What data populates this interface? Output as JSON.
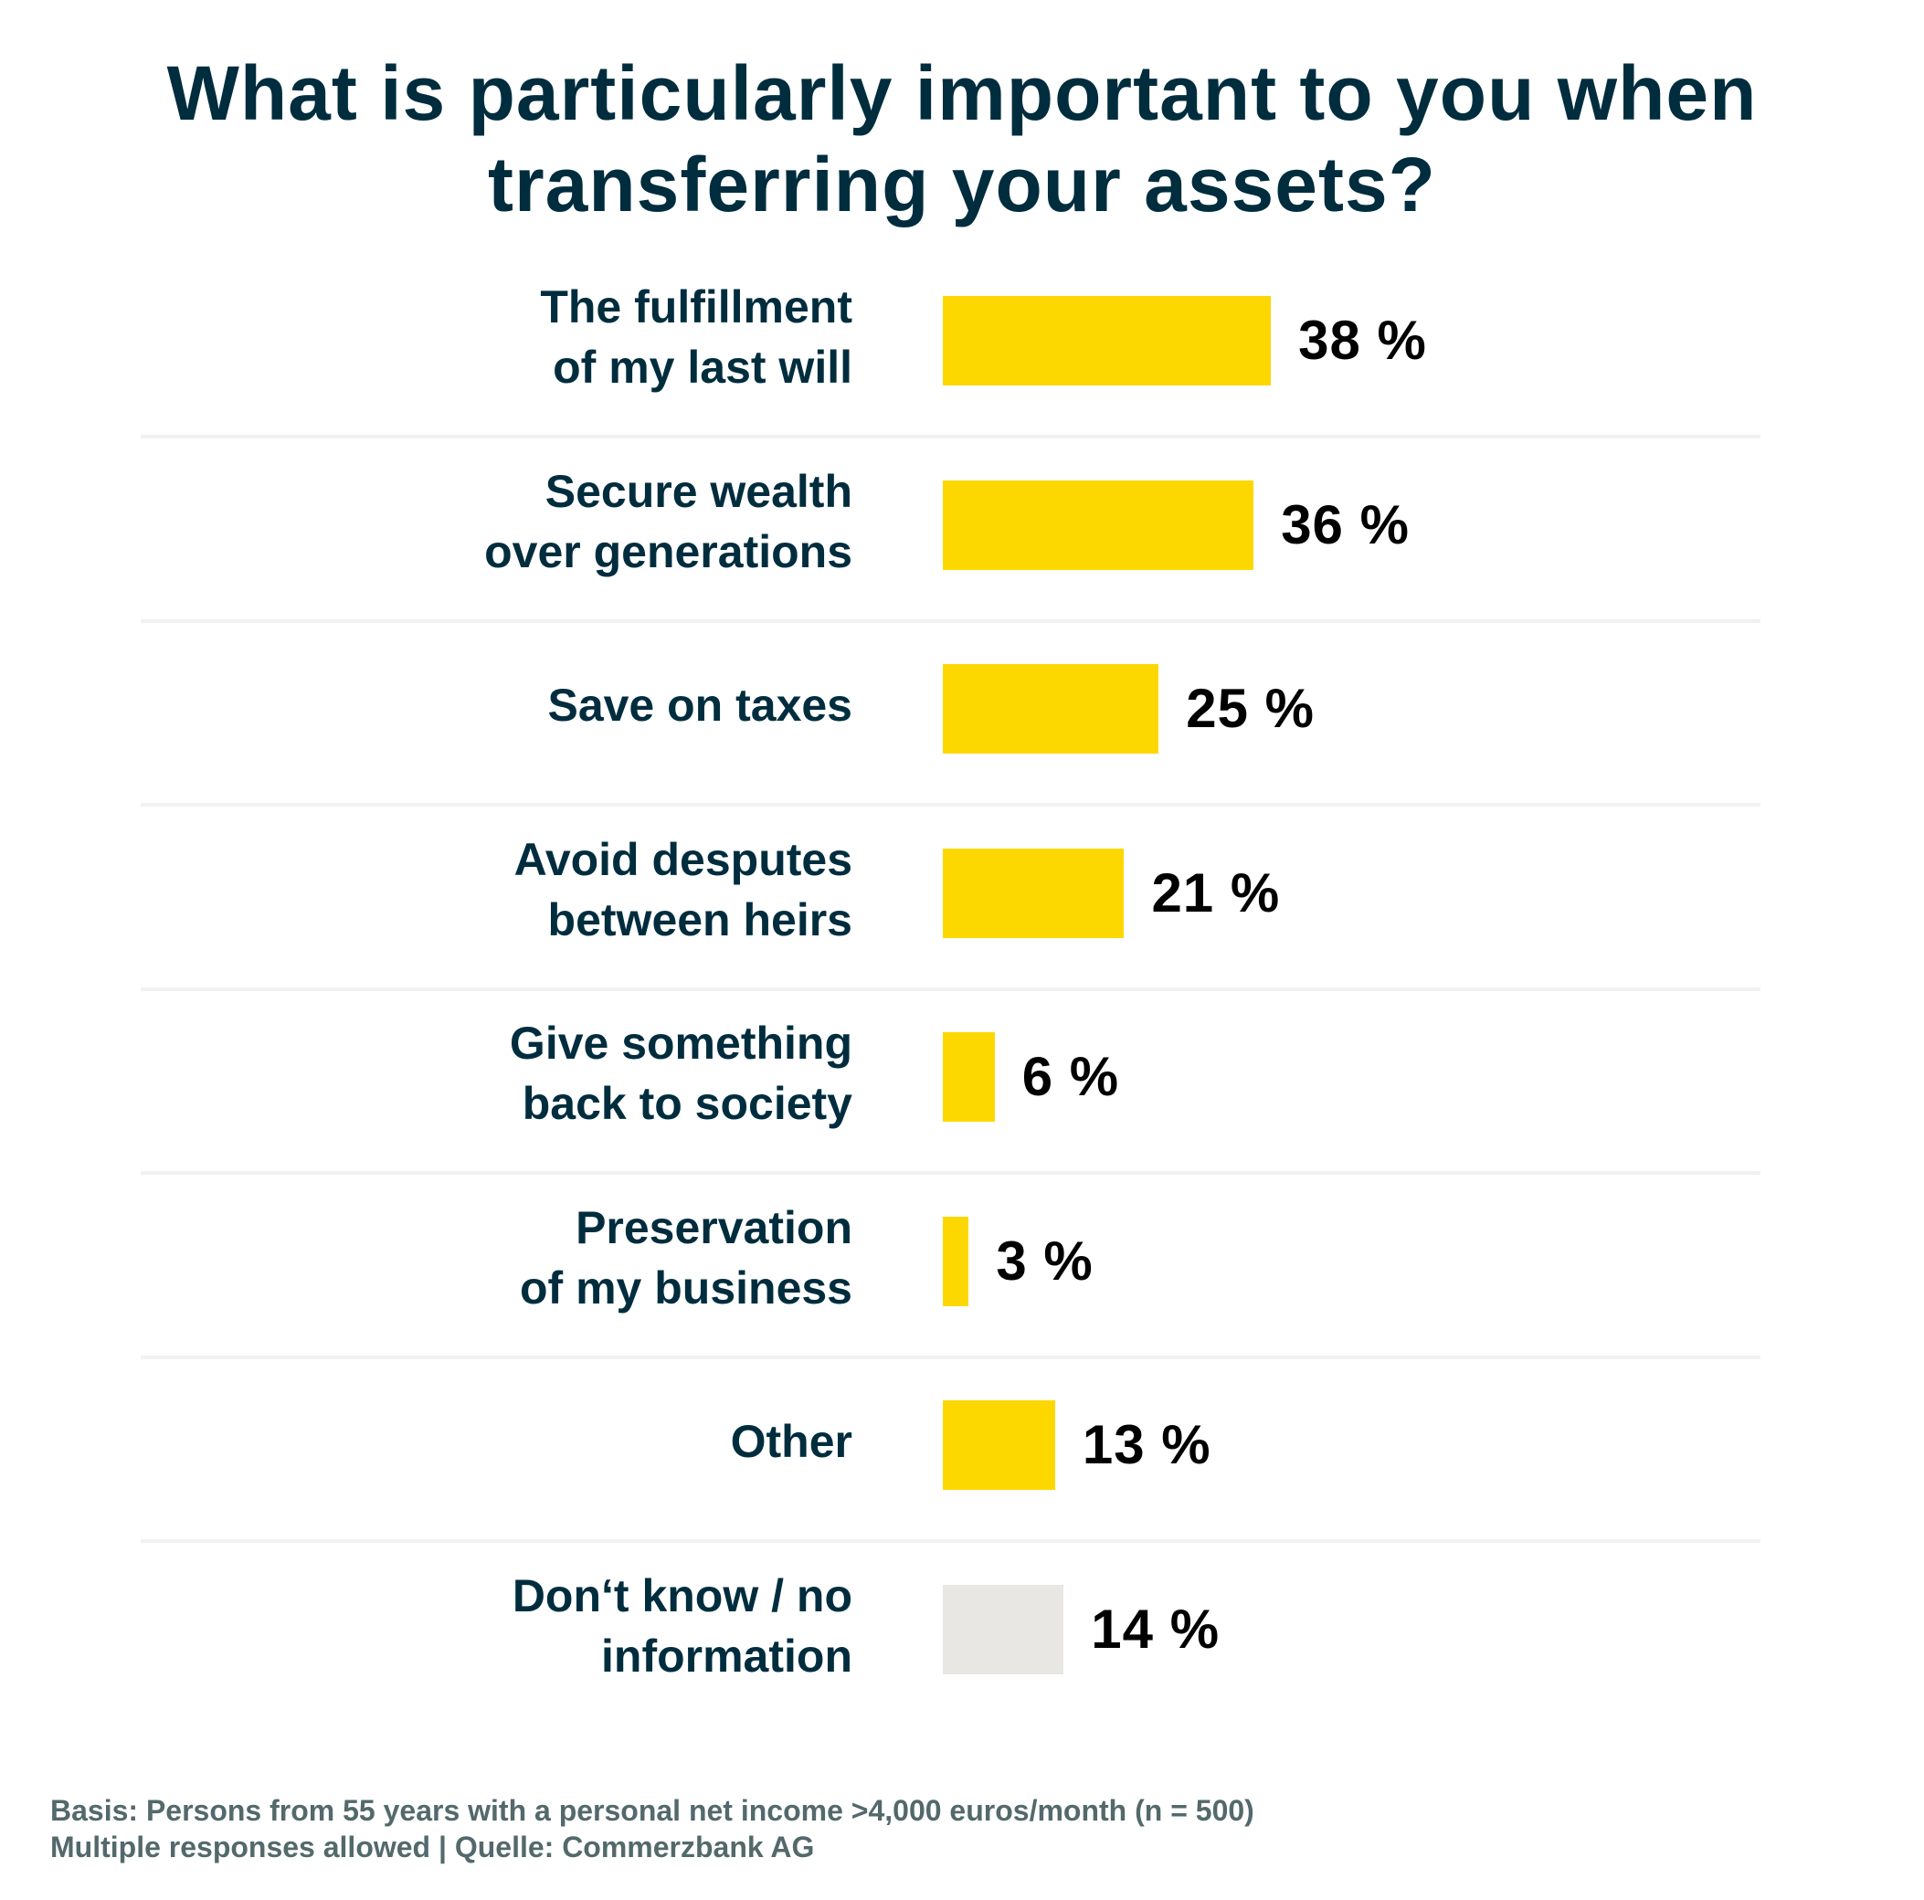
{
  "chart_data": {
    "type": "bar",
    "orientation": "horizontal",
    "title": "What is particularly important to you when transferring your assets?",
    "title_lines": [
      "What is particularly important to you when",
      "transferring your assets?"
    ],
    "categories": [
      "The fulfillment\nof my last will",
      "Secure wealth\nover generations",
      "Save on taxes",
      "Avoid desputes\nbetween heirs",
      "Give something\nback to society",
      "Preservation\nof my business",
      "Other",
      "Don‘t know / no\ninformation"
    ],
    "values": [
      38,
      36,
      25,
      21,
      6,
      3,
      13,
      14
    ],
    "value_labels": [
      "38 %",
      "36 %",
      "25 %",
      "21 %",
      "6 %",
      "3 %",
      "13 %",
      "14 %"
    ],
    "unit": "%",
    "bar_colors": [
      "#fdd800",
      "#fdd800",
      "#fdd800",
      "#fdd800",
      "#fdd800",
      "#fdd800",
      "#fdd800",
      "#e8e7e3"
    ],
    "xlabel": "",
    "ylabel": "",
    "xlim": [
      0,
      100
    ],
    "grid": false,
    "legend": "none"
  },
  "colors": {
    "accent": "#fdd800",
    "neutral_bar": "#e8e7e3",
    "title": "#002d3e",
    "footer": "#53696c",
    "separator": "#f0f2f2"
  },
  "footer": {
    "line1": "Basis: Persons from 55 years with a personal net income >4,000 euros/month (n = 500)",
    "line2": "Multiple responses allowed | Quelle: Commerzbank AG"
  }
}
